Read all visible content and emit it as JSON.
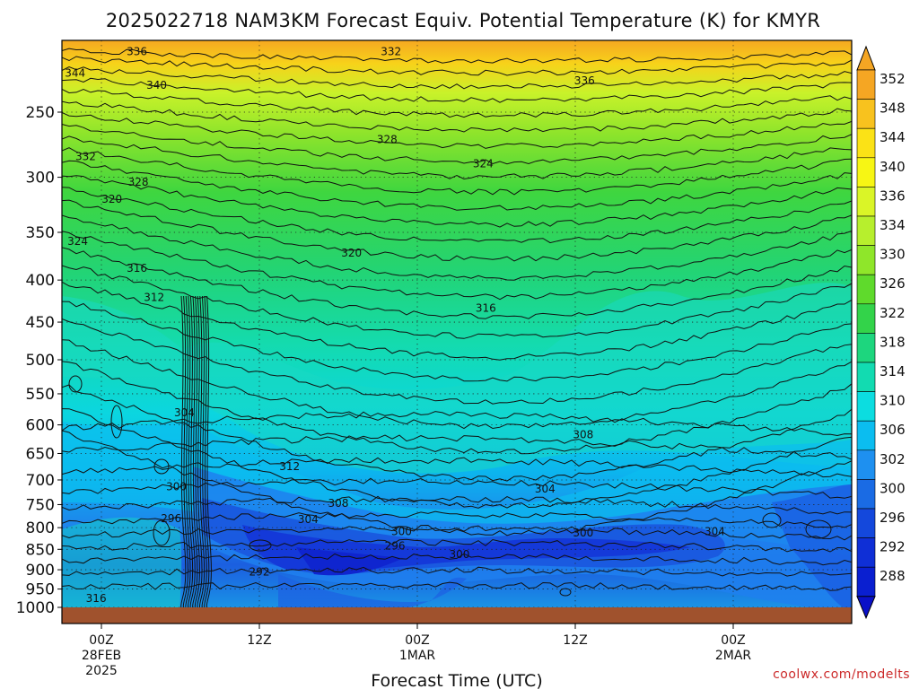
{
  "chart_data": {
    "type": "heatmap",
    "title": "2025022718 NAM3KM Forecast Equiv. Potential Temperature (K) for KMYR",
    "xlabel": "Forecast Time (UTC)",
    "ylabel": "",
    "credit": "coolwx.com/modelts",
    "y_axis": {
      "scale": "log-pressure",
      "ticks": [
        "250",
        "300",
        "350",
        "400",
        "450",
        "500",
        "550",
        "600",
        "650",
        "700",
        "750",
        "800",
        "850",
        "900",
        "950",
        "1000"
      ]
    },
    "x_axis": {
      "range_hours": [
        -3,
        57
      ],
      "ticks": [
        {
          "hour": 0,
          "lines": [
            "00Z",
            "28FEB",
            "2025"
          ]
        },
        {
          "hour": 12,
          "lines": [
            "12Z"
          ]
        },
        {
          "hour": 24,
          "lines": [
            "00Z",
            "1MAR"
          ]
        },
        {
          "hour": 36,
          "lines": [
            "12Z"
          ]
        },
        {
          "hour": 48,
          "lines": [
            "00Z",
            "2MAR"
          ]
        }
      ]
    },
    "grid": true,
    "colorbar": {
      "levels": [
        "352",
        "348",
        "344",
        "340",
        "336",
        "334",
        "330",
        "326",
        "322",
        "318",
        "314",
        "310",
        "306",
        "302",
        "300",
        "296",
        "292",
        "288"
      ],
      "colors": [
        "#f5a623",
        "#f8c21e",
        "#fbe216",
        "#f7f614",
        "#daf527",
        "#b7ef2d",
        "#8fe62a",
        "#5fda2c",
        "#33d34a",
        "#1dd67e",
        "#12dbb1",
        "#0cdde0",
        "#0bbdf0",
        "#1e90f0",
        "#1a6be4",
        "#1448dc",
        "#0f2fd6",
        "#0a1fd0"
      ]
    },
    "contour_labels": [
      {
        "value": "336",
        "hour": 2.7,
        "p": 211
      },
      {
        "value": "332",
        "hour": 22.0,
        "p": 211
      },
      {
        "value": "344",
        "hour": -2.0,
        "p": 224
      },
      {
        "value": "340",
        "hour": 4.2,
        "p": 232
      },
      {
        "value": "336",
        "hour": 36.7,
        "p": 229
      },
      {
        "value": "328",
        "hour": 21.7,
        "p": 270
      },
      {
        "value": "332",
        "hour": -1.2,
        "p": 283
      },
      {
        "value": "324",
        "hour": 29.0,
        "p": 289
      },
      {
        "value": "328",
        "hour": 2.8,
        "p": 304
      },
      {
        "value": "320",
        "hour": 0.8,
        "p": 319
      },
      {
        "value": "324",
        "hour": -1.8,
        "p": 359
      },
      {
        "value": "320",
        "hour": 19.0,
        "p": 371
      },
      {
        "value": "316",
        "hour": 2.7,
        "p": 387
      },
      {
        "value": "312",
        "hour": 4.0,
        "p": 420
      },
      {
        "value": "316",
        "hour": 29.2,
        "p": 433
      },
      {
        "value": "304",
        "hour": 6.3,
        "p": 580
      },
      {
        "value": "308",
        "hour": 36.6,
        "p": 617
      },
      {
        "value": "312",
        "hour": 14.3,
        "p": 674
      },
      {
        "value": "300",
        "hour": 5.7,
        "p": 713
      },
      {
        "value": "304",
        "hour": 33.7,
        "p": 718
      },
      {
        "value": "308",
        "hour": 18.0,
        "p": 747
      },
      {
        "value": "296",
        "hour": 5.3,
        "p": 780
      },
      {
        "value": "304",
        "hour": 15.7,
        "p": 782
      },
      {
        "value": "300",
        "hour": 22.8,
        "p": 809
      },
      {
        "value": "300",
        "hour": 36.6,
        "p": 812
      },
      {
        "value": "304",
        "hour": 46.6,
        "p": 809
      },
      {
        "value": "296",
        "hour": 22.3,
        "p": 842
      },
      {
        "value": "300",
        "hour": 27.2,
        "p": 862
      },
      {
        "value": "292",
        "hour": 12.0,
        "p": 905
      },
      {
        "value": "316",
        "hour": -0.4,
        "p": 975
      }
    ]
  }
}
